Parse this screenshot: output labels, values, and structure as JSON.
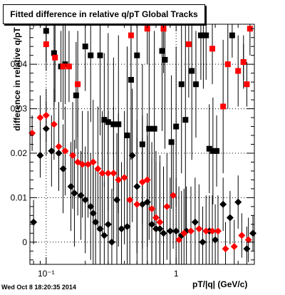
{
  "title": "Fitted difference in relative q/pT  Global Tracks",
  "datestamp": "Wed Oct  8 18:20:35 2014",
  "chart_data": {
    "type": "scatter",
    "title": "Fitted difference in relative q/pT  Global Tracks",
    "xlabel": "pT/|q| (GeV/c)",
    "ylabel": "difference in relative q/pT",
    "xscale": "log",
    "xlim": [
      0.075,
      4.0
    ],
    "ylim": [
      -0.005,
      0.049
    ],
    "grid": true,
    "x_ticks": [
      {
        "v": 0.1,
        "label": "10⁻¹"
      },
      {
        "v": 1,
        "label": "1"
      }
    ],
    "y_ticks": [
      {
        "v": 0,
        "label": "0"
      },
      {
        "v": 0.01,
        "label": "0.01"
      },
      {
        "v": 0.02,
        "label": "0.02"
      },
      {
        "v": 0.03,
        "label": "0.03"
      },
      {
        "v": 0.04,
        "label": "0.04"
      }
    ],
    "colors": {
      "black": "#000000",
      "red": "#ff0000"
    },
    "series": [
      {
        "marker": "square",
        "color": "#000000",
        "points": [
          {
            "x": 0.1,
            "y": 0.0475,
            "e": 0.007
          },
          {
            "x": 0.115,
            "y": 0.0425,
            "e": 0.012
          },
          {
            "x": 0.13,
            "y": 0.0395,
            "e": 0.008
          },
          {
            "x": 0.14,
            "y": 0.04,
            "e": 0.009
          },
          {
            "x": 0.17,
            "y": 0.033,
            "e": 0.012
          },
          {
            "x": 0.2,
            "y": 0.044,
            "e": 0.01
          },
          {
            "x": 0.22,
            "y": 0.042,
            "e": 0.015
          },
          {
            "x": 0.26,
            "y": 0.042,
            "e": 0.018
          },
          {
            "x": 0.28,
            "y": 0.0275,
            "e": 0.015
          },
          {
            "x": 0.3,
            "y": 0.027,
            "e": 0.02
          },
          {
            "x": 0.33,
            "y": 0.0265,
            "e": 0.015
          },
          {
            "x": 0.36,
            "y": 0.0265,
            "e": 0.02
          },
          {
            "x": 0.42,
            "y": 0.024,
            "e": 0.02
          },
          {
            "x": 0.45,
            "y": 0.0365,
            "e": 0.018
          },
          {
            "x": 0.5,
            "y": 0.042,
            "e": 0.022
          },
          {
            "x": 0.55,
            "y": 0.022,
            "e": 0.018
          },
          {
            "x": 0.62,
            "y": 0.0255,
            "e": 0.025
          },
          {
            "x": 0.68,
            "y": 0.0255,
            "e": 0.022
          },
          {
            "x": 0.78,
            "y": 0.043,
            "e": 0.018
          },
          {
            "x": 0.82,
            "y": 0.041,
            "e": 0.02
          },
          {
            "x": 0.92,
            "y": 0.0225,
            "e": 0.015
          },
          {
            "x": 1.0,
            "y": 0.026,
            "e": 0.018
          },
          {
            "x": 1.1,
            "y": 0.0355,
            "e": 0.02
          },
          {
            "x": 1.18,
            "y": 0.0275,
            "e": 0.025
          },
          {
            "x": 1.32,
            "y": 0.0385,
            "e": 0.02
          },
          {
            "x": 1.42,
            "y": 0.0355,
            "e": 0.012
          },
          {
            "x": 1.55,
            "y": 0.0465,
            "e": 0.01
          },
          {
            "x": 1.62,
            "y": 0.0465,
            "e": 0.012
          },
          {
            "x": 1.7,
            "y": 0.0465,
            "e": 0.01
          },
          {
            "x": 1.8,
            "y": 0.021,
            "e": 0.01
          },
          {
            "x": 1.92,
            "y": 0.0205,
            "e": 0.012
          },
          {
            "x": 2.05,
            "y": 0.0205,
            "e": 0.008
          },
          {
            "x": 2.7,
            "y": 0.0465,
            "e": 0.005
          },
          {
            "x": 3.3,
            "y": 0.0405,
            "e": 0.004
          }
        ]
      },
      {
        "marker": "square",
        "color": "#ff0000",
        "points": [
          {
            "x": 0.1,
            "y": 0.0445,
            "e": 0.006
          },
          {
            "x": 0.117,
            "y": 0.0415,
            "e": 0.01
          },
          {
            "x": 0.135,
            "y": 0.0395,
            "e": 0.012
          },
          {
            "x": 0.15,
            "y": 0.0395,
            "e": 0.008
          },
          {
            "x": 0.175,
            "y": 0.0355,
            "e": 0.012
          },
          {
            "x": 0.45,
            "y": 0.0465,
            "e": 0.01
          },
          {
            "x": 0.6,
            "y": 0.048,
            "e": 0.008
          },
          {
            "x": 0.8,
            "y": 0.048,
            "e": 0.01
          },
          {
            "x": 1.25,
            "y": 0.0445,
            "e": 0.012
          },
          {
            "x": 1.9,
            "y": 0.0435,
            "e": 0.008
          },
          {
            "x": 2.3,
            "y": 0.0305,
            "e": 0.015
          },
          {
            "x": 2.5,
            "y": 0.04,
            "e": 0.01
          },
          {
            "x": 3.0,
            "y": 0.0385,
            "e": 0.008
          },
          {
            "x": 3.3,
            "y": 0.0405,
            "e": 0.006
          },
          {
            "x": 3.5,
            "y": 0.0355,
            "e": 0.005
          },
          {
            "x": 3.7,
            "y": 0.048,
            "e": 0.006
          }
        ]
      },
      {
        "marker": "diamond",
        "color": "#000000",
        "points": [
          {
            "x": 0.08,
            "y": 0.0045,
            "e": 0.005
          },
          {
            "x": 0.09,
            "y": 0.0195,
            "e": 0.005
          },
          {
            "x": 0.1,
            "y": 0.0255,
            "e": 0.006
          },
          {
            "x": 0.11,
            "y": 0.0205,
            "e": 0.008
          },
          {
            "x": 0.125,
            "y": 0.02,
            "e": 0.008
          },
          {
            "x": 0.135,
            "y": 0.0165,
            "e": 0.01
          },
          {
            "x": 0.155,
            "y": 0.0125,
            "e": 0.01
          },
          {
            "x": 0.165,
            "y": 0.011,
            "e": 0.012
          },
          {
            "x": 0.185,
            "y": 0.0105,
            "e": 0.01
          },
          {
            "x": 0.2,
            "y": 0.0095,
            "e": 0.012
          },
          {
            "x": 0.22,
            "y": 0.008,
            "e": 0.012
          },
          {
            "x": 0.23,
            "y": 0.0065,
            "e": 0.012
          },
          {
            "x": 0.24,
            "y": 0.0045,
            "e": 0.012
          },
          {
            "x": 0.26,
            "y": 0.003,
            "e": 0.012
          },
          {
            "x": 0.28,
            "y": 0.0015,
            "e": 0.012
          },
          {
            "x": 0.3,
            "y": 0.004,
            "e": 0.012
          },
          {
            "x": 0.32,
            "y": 0.0,
            "e": 0.012
          },
          {
            "x": 0.35,
            "y": 0.0095,
            "e": 0.015
          },
          {
            "x": 0.38,
            "y": 0.003,
            "e": 0.015
          },
          {
            "x": 0.42,
            "y": 0.0035,
            "e": 0.015
          },
          {
            "x": 0.46,
            "y": 0.0195,
            "e": 0.015
          },
          {
            "x": 0.5,
            "y": 0.0125,
            "e": 0.015
          },
          {
            "x": 0.55,
            "y": 0.0085,
            "e": 0.015
          },
          {
            "x": 0.6,
            "y": 0.009,
            "e": 0.015
          },
          {
            "x": 0.65,
            "y": 0.004,
            "e": 0.015
          },
          {
            "x": 0.7,
            "y": 0.003,
            "e": 0.015
          },
          {
            "x": 0.75,
            "y": 0.003,
            "e": 0.015
          },
          {
            "x": 0.8,
            "y": 0.002,
            "e": 0.015
          },
          {
            "x": 0.9,
            "y": 0.0025,
            "e": 0.012
          },
          {
            "x": 1.0,
            "y": 0.0025,
            "e": 0.012
          },
          {
            "x": 1.1,
            "y": 0.0015,
            "e": 0.01
          },
          {
            "x": 1.2,
            "y": 0.0025,
            "e": 0.01
          },
          {
            "x": 1.4,
            "y": 0.0045,
            "e": 0.01
          },
          {
            "x": 1.6,
            "y": 0.0,
            "e": 0.008
          },
          {
            "x": 1.8,
            "y": 0.0025,
            "e": 0.008
          },
          {
            "x": 2.0,
            "y": 0.0005,
            "e": 0.008
          },
          {
            "x": 2.3,
            "y": 0.0085,
            "e": 0.006
          },
          {
            "x": 2.6,
            "y": 0.0055,
            "e": 0.006
          },
          {
            "x": 3.0,
            "y": 0.009,
            "e": 0.006
          },
          {
            "x": 3.5,
            "y": -0.0015,
            "e": 0.005
          },
          {
            "x": 3.9,
            "y": 0.002,
            "e": 0.004
          }
        ]
      },
      {
        "marker": "diamond",
        "color": "#ff0000",
        "points": [
          {
            "x": 0.078,
            "y": 0.0245,
            "e": 0.004
          },
          {
            "x": 0.09,
            "y": 0.028,
            "e": 0.005
          },
          {
            "x": 0.1,
            "y": 0.0285,
            "e": 0.006
          },
          {
            "x": 0.115,
            "y": 0.0265,
            "e": 0.008
          },
          {
            "x": 0.125,
            "y": 0.0215,
            "e": 0.01
          },
          {
            "x": 0.14,
            "y": 0.0205,
            "e": 0.01
          },
          {
            "x": 0.16,
            "y": 0.0195,
            "e": 0.012
          },
          {
            "x": 0.175,
            "y": 0.018,
            "e": 0.012
          },
          {
            "x": 0.19,
            "y": 0.0175,
            "e": 0.012
          },
          {
            "x": 0.21,
            "y": 0.0175,
            "e": 0.012
          },
          {
            "x": 0.23,
            "y": 0.018,
            "e": 0.014
          },
          {
            "x": 0.25,
            "y": 0.0165,
            "e": 0.014
          },
          {
            "x": 0.27,
            "y": 0.0155,
            "e": 0.014
          },
          {
            "x": 0.3,
            "y": 0.0155,
            "e": 0.014
          },
          {
            "x": 0.33,
            "y": 0.0155,
            "e": 0.015
          },
          {
            "x": 0.36,
            "y": 0.014,
            "e": 0.015
          },
          {
            "x": 0.4,
            "y": 0.0145,
            "e": 0.015
          },
          {
            "x": 0.44,
            "y": 0.0095,
            "e": 0.015
          },
          {
            "x": 0.5,
            "y": 0.0085,
            "e": 0.015
          },
          {
            "x": 0.55,
            "y": 0.0135,
            "e": 0.015
          },
          {
            "x": 0.6,
            "y": 0.014,
            "e": 0.015
          },
          {
            "x": 0.65,
            "y": 0.0075,
            "e": 0.015
          },
          {
            "x": 0.7,
            "y": 0.0055,
            "e": 0.015
          },
          {
            "x": 0.75,
            "y": 0.0045,
            "e": 0.015
          },
          {
            "x": 0.85,
            "y": 0.008,
            "e": 0.012
          },
          {
            "x": 0.95,
            "y": 0.0105,
            "e": 0.012
          },
          {
            "x": 1.05,
            "y": 0.0005,
            "e": 0.012
          },
          {
            "x": 1.15,
            "y": 0.002,
            "e": 0.01
          },
          {
            "x": 1.3,
            "y": 0.0025,
            "e": 0.01
          },
          {
            "x": 1.5,
            "y": 0.003,
            "e": 0.01
          },
          {
            "x": 1.7,
            "y": 0.0025,
            "e": 0.008
          },
          {
            "x": 1.9,
            "y": 0.0025,
            "e": 0.008
          },
          {
            "x": 2.1,
            "y": 0.0025,
            "e": 0.008
          },
          {
            "x": 2.4,
            "y": -0.0015,
            "e": 0.006
          },
          {
            "x": 2.8,
            "y": -0.001,
            "e": 0.006
          },
          {
            "x": 3.2,
            "y": 0.0015,
            "e": 0.005
          },
          {
            "x": 3.6,
            "y": 0.0005,
            "e": 0.005
          }
        ]
      }
    ]
  }
}
